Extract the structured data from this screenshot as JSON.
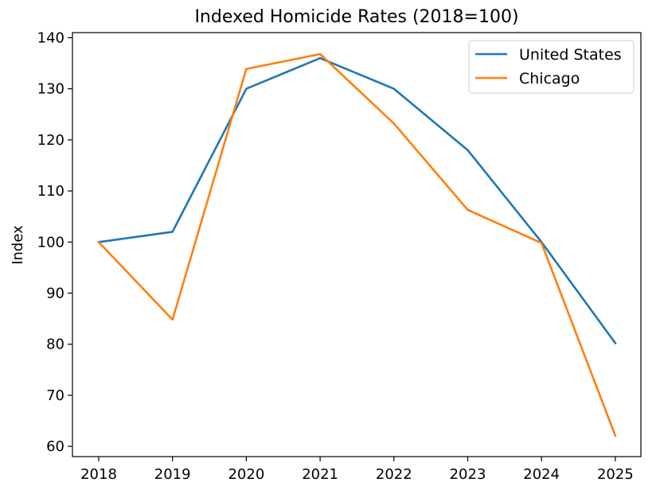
{
  "chart_data": {
    "type": "line",
    "title": "Indexed Homicide Rates (2018=100)",
    "xlabel": "",
    "ylabel": "Index",
    "categories": [
      "2018",
      "2019",
      "2020",
      "2021",
      "2022",
      "2023",
      "2024",
      "2025"
    ],
    "ylim": [
      58,
      141
    ],
    "yticks": [
      60,
      70,
      80,
      90,
      100,
      110,
      120,
      130,
      140
    ],
    "grid": false,
    "legend": "upper right",
    "series": [
      {
        "name": "United States",
        "color": "#1f77b4",
        "values": [
          100,
          102,
          130,
          136,
          130,
          118,
          100,
          80.2
        ]
      },
      {
        "name": "Chicago",
        "color": "#ff7f0e",
        "values": [
          100,
          84.8,
          133.9,
          136.8,
          123.2,
          106.3,
          99.8,
          62.1
        ]
      }
    ]
  }
}
